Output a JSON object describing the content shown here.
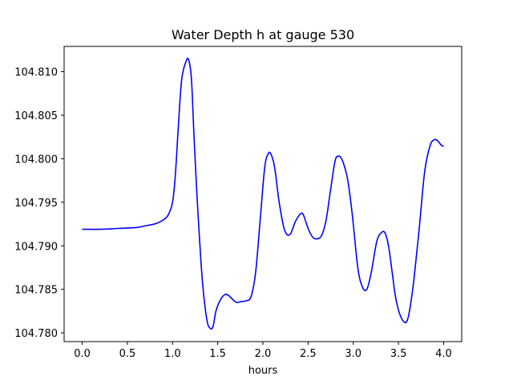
{
  "chart_data": {
    "type": "line",
    "title": "Water Depth h at gauge 530",
    "xlabel": "hours",
    "ylabel": "",
    "xlim": [
      -0.2,
      4.2
    ],
    "ylim": [
      104.779,
      104.8129
    ],
    "xticks": [
      0.0,
      0.5,
      1.0,
      1.5,
      2.0,
      2.5,
      3.0,
      3.5,
      4.0
    ],
    "xtick_labels": [
      "0.0",
      "0.5",
      "1.0",
      "1.5",
      "2.0",
      "2.5",
      "3.0",
      "3.5",
      "4.0"
    ],
    "yticks": [
      104.78,
      104.785,
      104.79,
      104.795,
      104.8,
      104.805,
      104.81
    ],
    "ytick_labels": [
      "104.780",
      "104.785",
      "104.790",
      "104.795",
      "104.800",
      "104.805",
      "104.810"
    ],
    "grid": false,
    "series": [
      {
        "color": "#0000ff",
        "x": [
          0.0,
          0.2,
          0.4,
          0.6,
          0.7,
          0.8,
          0.85,
          0.9,
          0.95,
          1.0,
          1.03,
          1.06,
          1.1,
          1.15,
          1.18,
          1.21,
          1.24,
          1.28,
          1.33,
          1.38,
          1.42,
          1.45,
          1.48,
          1.53,
          1.58,
          1.62,
          1.67,
          1.71,
          1.76,
          1.82,
          1.87,
          1.92,
          1.97,
          2.02,
          2.06,
          2.09,
          2.13,
          2.18,
          2.24,
          2.3,
          2.36,
          2.42,
          2.45,
          2.5,
          2.55,
          2.6,
          2.65,
          2.7,
          2.75,
          2.8,
          2.84,
          2.87,
          2.9,
          2.94,
          2.99,
          3.05,
          3.1,
          3.15,
          3.2,
          3.26,
          3.31,
          3.35,
          3.39,
          3.43,
          3.47,
          3.52,
          3.57,
          3.6,
          3.63,
          3.67,
          3.73,
          3.79,
          3.85,
          3.9,
          3.94,
          3.97,
          4.0
        ],
        "y": [
          104.7919,
          104.7919,
          104.792,
          104.7921,
          104.7923,
          104.7925,
          104.7927,
          104.793,
          104.7935,
          104.795,
          104.798,
          104.803,
          104.809,
          104.8112,
          104.8113,
          104.809,
          104.802,
          104.794,
          104.786,
          104.7815,
          104.7805,
          104.7808,
          104.7825,
          104.7838,
          104.7844,
          104.7843,
          104.7838,
          104.7835,
          104.7836,
          104.7837,
          104.7842,
          104.787,
          104.793,
          104.799,
          104.8006,
          104.8005,
          104.799,
          104.795,
          104.7918,
          104.7913,
          104.7928,
          104.7937,
          104.7935,
          104.792,
          104.791,
          104.7908,
          104.7912,
          104.793,
          104.7965,
          104.7998,
          104.8003,
          104.8,
          104.7992,
          104.7975,
          104.7935,
          104.7875,
          104.7853,
          104.785,
          104.787,
          104.7905,
          104.7915,
          104.7915,
          104.79,
          104.787,
          104.784,
          104.782,
          104.7812,
          104.7815,
          104.783,
          104.786,
          104.792,
          104.7985,
          104.8015,
          104.8022,
          104.802,
          104.8016,
          104.8014
        ]
      }
    ]
  }
}
